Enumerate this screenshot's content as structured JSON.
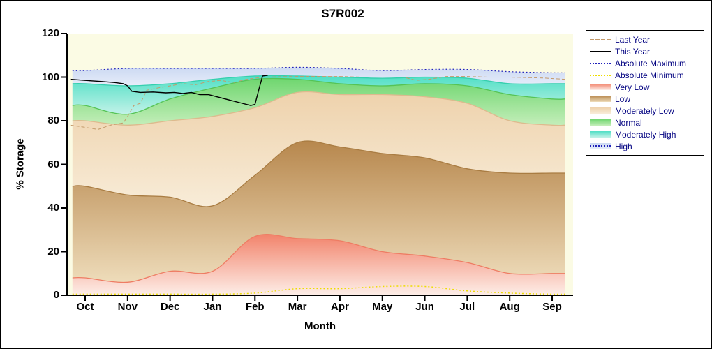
{
  "chart_data": {
    "type": "area",
    "title": "S7R002",
    "xlabel": "Month",
    "ylabel": "% Storage",
    "ylim": [
      0,
      120
    ],
    "y_ticks": [
      0,
      20,
      40,
      60,
      80,
      100,
      120
    ],
    "categories": [
      "Oct",
      "Nov",
      "Dec",
      "Jan",
      "Feb",
      "Mar",
      "Apr",
      "May",
      "Jun",
      "Jul",
      "Aug",
      "Sep"
    ],
    "plot_background": "#fbfbe4",
    "grid": false,
    "bands": [
      {
        "name": "Very Low",
        "top": [
          8,
          6,
          11,
          11,
          27,
          26,
          25,
          20,
          18,
          15,
          10,
          10
        ],
        "color_top": "#f2836b",
        "color_bottom": "#fdeee8",
        "edge": "#ee7c63"
      },
      {
        "name": "Low",
        "top": [
          50,
          46,
          45,
          41,
          55,
          70,
          68,
          65,
          63,
          58,
          56,
          56
        ],
        "color_top": "#b7874d",
        "color_bottom": "#eedcba",
        "edge": "#a97c42"
      },
      {
        "name": "Moderately Low",
        "top": [
          80,
          78,
          80,
          82,
          86,
          93,
          92,
          92,
          91,
          88,
          80,
          78
        ],
        "color_top": "#eed2ac",
        "color_bottom": "#f8ecd8",
        "edge": "#ddba8e"
      },
      {
        "name": "Normal",
        "top": [
          87,
          83,
          90,
          95,
          99,
          99,
          97,
          96,
          97,
          96,
          92,
          90
        ],
        "color_top": "#6fd66f",
        "color_bottom": "#c4eeba",
        "edge": "#55c355"
      },
      {
        "name": "Moderately High",
        "top": [
          97,
          96,
          97,
          99,
          100.5,
          100.5,
          100,
          99.5,
          100,
          99.5,
          97,
          97
        ],
        "color_top": "#50dfc5",
        "color_bottom": "#c2f2e8",
        "edge": "#35cfae"
      },
      {
        "name": "High",
        "top": [
          103,
          104,
          104,
          104,
          104,
          104.5,
          104,
          103,
          103.5,
          103.5,
          102.5,
          102
        ],
        "color_top": "#ccd9f2",
        "color_bottom": "#e7edfa",
        "edge": "none"
      }
    ],
    "lines": [
      {
        "name": "Absolute Maximum",
        "style": "dotted",
        "smooth": true,
        "color": "#2222bb",
        "width": 1.2,
        "points": [
          [
            -0.3,
            103
          ],
          [
            0,
            103
          ],
          [
            1,
            104
          ],
          [
            2,
            104
          ],
          [
            3,
            104
          ],
          [
            4,
            104
          ],
          [
            5,
            104.5
          ],
          [
            6,
            104
          ],
          [
            7,
            103
          ],
          [
            8,
            103.5
          ],
          [
            9,
            103.5
          ],
          [
            10,
            102.5
          ],
          [
            11,
            102
          ],
          [
            11.3,
            102
          ]
        ]
      },
      {
        "name": "Absolute Minimum",
        "style": "dotted",
        "smooth": true,
        "color": "#eedd00",
        "width": 1.5,
        "points": [
          [
            -0.3,
            0.5
          ],
          [
            0,
            0.5
          ],
          [
            1,
            0.5
          ],
          [
            2,
            0.5
          ],
          [
            3,
            0.5
          ],
          [
            4,
            1
          ],
          [
            5,
            3
          ],
          [
            6,
            3
          ],
          [
            7,
            4
          ],
          [
            8,
            4
          ],
          [
            9,
            2
          ],
          [
            10,
            1
          ],
          [
            11,
            0.5
          ],
          [
            11.3,
            0.5
          ]
        ]
      },
      {
        "name": "Last Year",
        "style": "dashed",
        "smooth": false,
        "color": "#c49a6a",
        "width": 1,
        "points": [
          [
            -0.35,
            78
          ],
          [
            0,
            77
          ],
          [
            0.3,
            76
          ],
          [
            0.6,
            78
          ],
          [
            0.9,
            79
          ],
          [
            1,
            82
          ],
          [
            1.15,
            87
          ],
          [
            1.3,
            88
          ],
          [
            1.45,
            94
          ],
          [
            1.7,
            95
          ],
          [
            2,
            96
          ],
          [
            2.3,
            97
          ],
          [
            2.6,
            96.5
          ],
          [
            2.9,
            98
          ],
          [
            3.2,
            98.5
          ],
          [
            3.5,
            97.5
          ],
          [
            3.8,
            99
          ],
          [
            4.2,
            100
          ],
          [
            5,
            100.3
          ],
          [
            6,
            100.3
          ],
          [
            6.5,
            100
          ],
          [
            7,
            100
          ],
          [
            7.5,
            100
          ],
          [
            7.8,
            98.5
          ],
          [
            8.1,
            99
          ],
          [
            8.5,
            100.3
          ],
          [
            9,
            100.3
          ],
          [
            9.5,
            100
          ],
          [
            10,
            100
          ],
          [
            10.8,
            99.6
          ],
          [
            11.3,
            99
          ]
        ]
      },
      {
        "name": "This Year",
        "style": "solid",
        "smooth": false,
        "color": "#000000",
        "width": 1.4,
        "points": [
          [
            -0.35,
            99
          ],
          [
            0,
            98.5
          ],
          [
            0.4,
            98
          ],
          [
            0.7,
            97.5
          ],
          [
            0.9,
            97
          ],
          [
            1,
            96
          ],
          [
            1.1,
            93.5
          ],
          [
            1.3,
            93
          ],
          [
            1.6,
            93.2
          ],
          [
            1.9,
            92.8
          ],
          [
            2.1,
            93
          ],
          [
            2.3,
            92.5
          ],
          [
            2.5,
            93
          ],
          [
            2.7,
            92
          ],
          [
            2.9,
            92
          ],
          [
            3.1,
            91
          ],
          [
            3.4,
            89.5
          ],
          [
            3.7,
            88
          ],
          [
            3.9,
            87
          ],
          [
            4.0,
            87.5
          ],
          [
            4.1,
            95
          ],
          [
            4.18,
            100.5
          ],
          [
            4.3,
            100.8
          ]
        ]
      }
    ],
    "legend": {
      "position": "right",
      "items": [
        {
          "label": "Last Year",
          "sample": "line",
          "line_style": "dashed",
          "color": "#c49a6a"
        },
        {
          "label": "This Year",
          "sample": "line",
          "line_style": "solid",
          "color": "#000000"
        },
        {
          "label": "Absolute Maximum",
          "sample": "line",
          "line_style": "dotted",
          "color": "#2222bb"
        },
        {
          "label": "Absolute Minimum",
          "sample": "line",
          "line_style": "dotted",
          "color": "#eedd00"
        },
        {
          "label": "Very Low",
          "sample": "swatch",
          "color_top": "#f2836b",
          "color_bottom": "#fdeee8"
        },
        {
          "label": "Low",
          "sample": "swatch",
          "color_top": "#b7874d",
          "color_bottom": "#eedcba"
        },
        {
          "label": "Moderately Low",
          "sample": "swatch",
          "color_top": "#eed2ac",
          "color_bottom": "#f8ecd8"
        },
        {
          "label": "Normal",
          "sample": "swatch",
          "color_top": "#6fd66f",
          "color_bottom": "#c4eeba"
        },
        {
          "label": "Moderately High",
          "sample": "swatch",
          "color_top": "#50dfc5",
          "color_bottom": "#c2f2e8"
        },
        {
          "label": "High",
          "sample": "swatch",
          "color_top": "#ccd9f2",
          "color_bottom": "#e7edfa",
          "overlay_line": {
            "style": "dotted",
            "color": "#2222bb"
          }
        }
      ]
    }
  }
}
